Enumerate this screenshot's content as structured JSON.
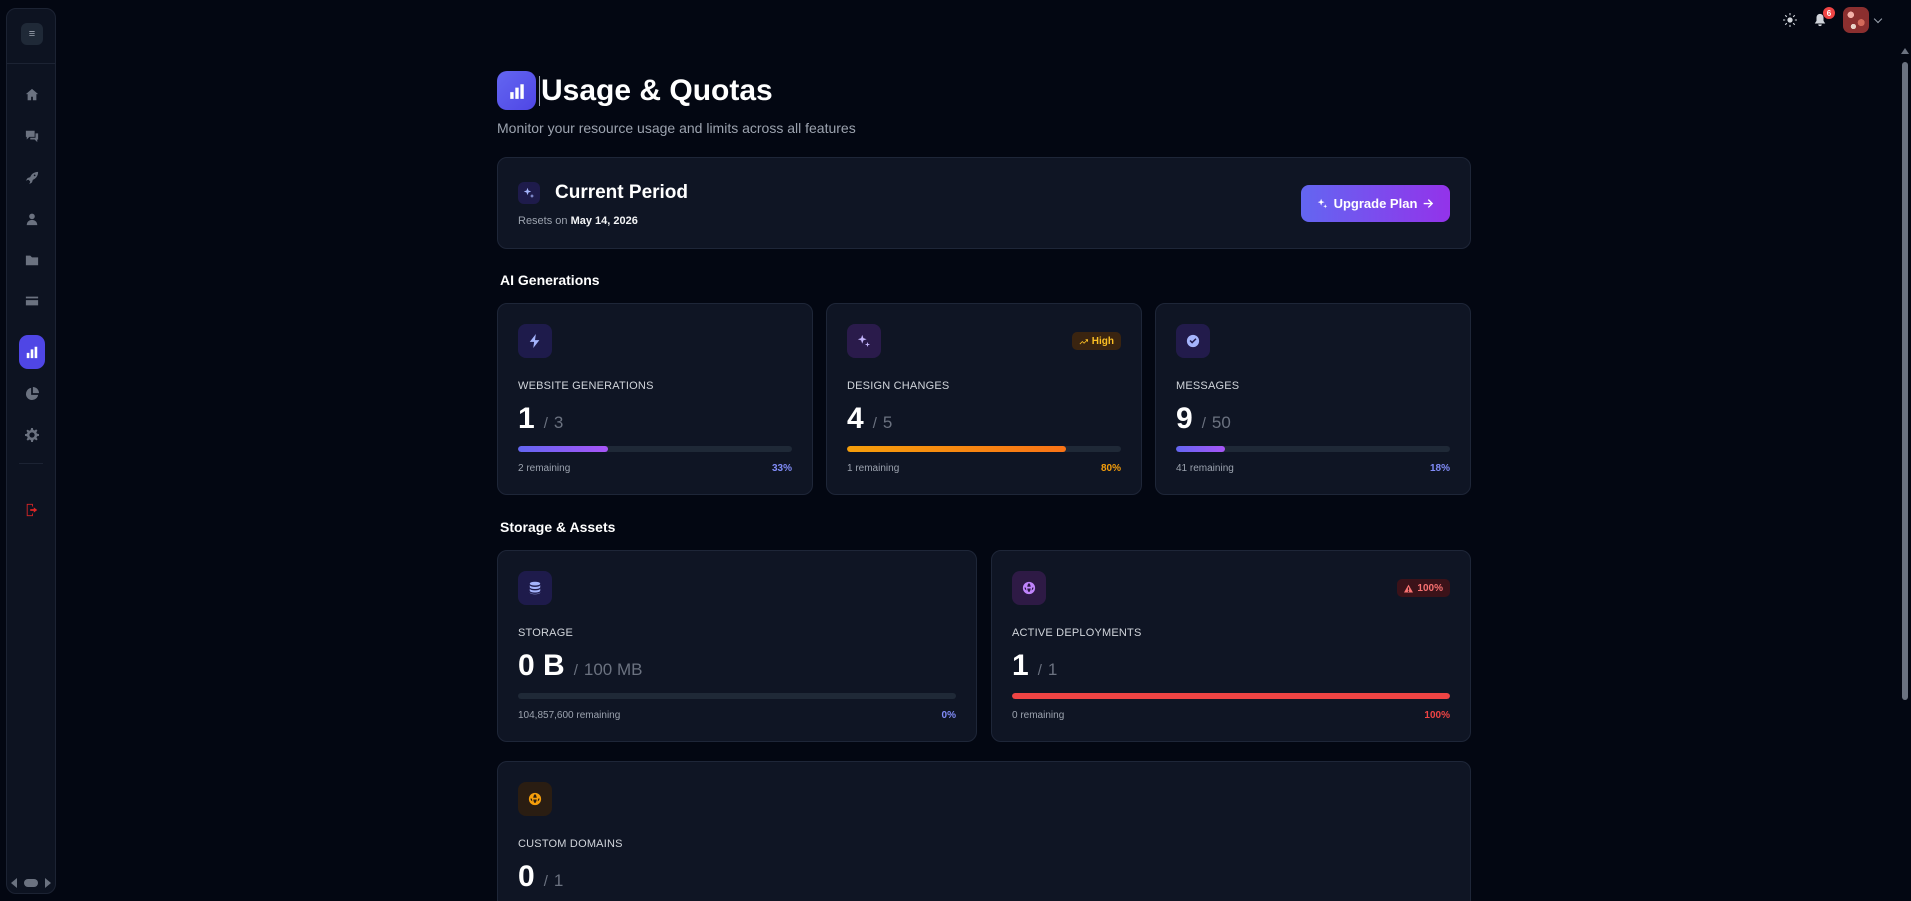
{
  "sidebar": {
    "toggle_icon": "menu-icon",
    "items": [
      {
        "name": "home",
        "icon": "home-icon"
      },
      {
        "name": "chat",
        "icon": "chat-icon"
      },
      {
        "name": "deploy",
        "icon": "rocket-icon"
      },
      {
        "name": "profile",
        "icon": "user-icon"
      },
      {
        "name": "projects",
        "icon": "folder-icon"
      },
      {
        "name": "billing",
        "icon": "credit-card-icon"
      },
      {
        "name": "usage",
        "icon": "bar-chart-icon",
        "active": true
      },
      {
        "name": "analytics",
        "icon": "pie-chart-icon"
      },
      {
        "name": "settings",
        "icon": "gear-icon"
      },
      {
        "name": "logout",
        "icon": "logout-icon"
      }
    ]
  },
  "topbar": {
    "theme_icon": "sun-icon",
    "notifications_count": "6"
  },
  "page": {
    "title": "Usage & Quotas",
    "subtitle": "Monitor your resource usage and limits across all features"
  },
  "period": {
    "title": "Current Period",
    "resets_prefix": "Resets on",
    "resets_date": "May 14, 2026",
    "upgrade_label": "Upgrade Plan"
  },
  "sections": {
    "ai": "AI Generations",
    "storage": "Storage & Assets"
  },
  "metrics": {
    "website_generations": {
      "label": "WEBSITE GENERATIONS",
      "used": "1",
      "limit": "3",
      "remaining": "2 remaining",
      "percent_label": "33%",
      "fill": 0.33,
      "color": "#818cf8"
    },
    "design_changes": {
      "label": "DESIGN CHANGES",
      "used": "4",
      "limit": "5",
      "remaining": "1 remaining",
      "percent_label": "80%",
      "fill": 0.8,
      "color": "#f59e0b",
      "badge": "High"
    },
    "messages": {
      "label": "MESSAGES",
      "used": "9",
      "limit": "50",
      "remaining": "41 remaining",
      "percent_label": "18%",
      "fill": 0.18,
      "color": "#818cf8"
    },
    "storage": {
      "label": "STORAGE",
      "used": "0 B",
      "limit": "100 MB",
      "remaining": "104,857,600 remaining",
      "percent_label": "0%",
      "fill": 0.0,
      "color": "#818cf8"
    },
    "active_deployments": {
      "label": "ACTIVE DEPLOYMENTS",
      "used": "1",
      "limit": "1",
      "remaining": "0 remaining",
      "percent_label": "100%",
      "fill": 1.0,
      "color": "#ef4444",
      "badge": "100%"
    },
    "custom_domains": {
      "label": "CUSTOM DOMAINS",
      "used": "0",
      "limit": "1"
    }
  },
  "colors": {
    "accent": "#4f46e5",
    "warning": "#f59e0b",
    "danger": "#ef4444"
  }
}
